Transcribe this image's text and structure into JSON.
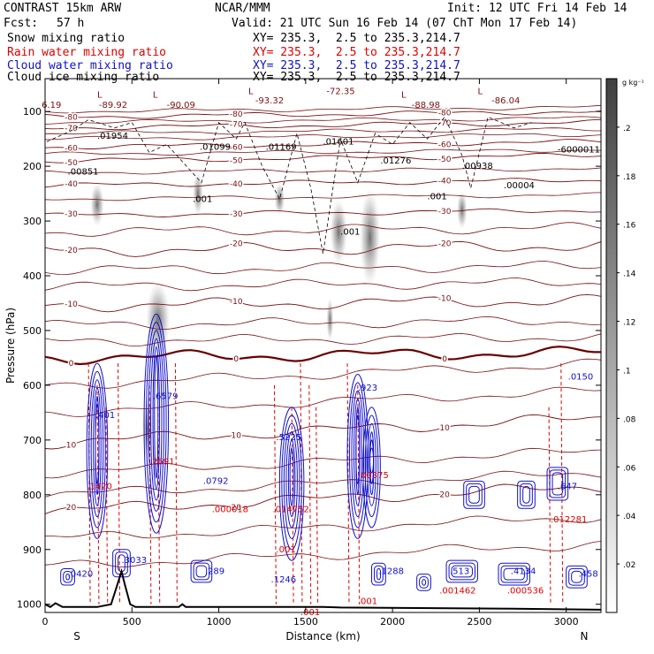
{
  "header": {
    "model": "CONTRAST 15km ARW",
    "org": "NCAR/MMM",
    "init": "Init: 12 UTC Fri 14 Feb 14",
    "fcst_label": "Fcst:",
    "fcst_value": "57 h",
    "valid": "Valid: 21 UTC Sun 16 Feb 14 (07 ChT Mon 17 Feb 14)",
    "fields": [
      {
        "name": "Snow mixing ratio",
        "xy": "XY= 235.3,  2.5 to 235.3,214.7",
        "color": "#000000"
      },
      {
        "name": "Rain water mixing ratio",
        "xy": "XY= 235.3,  2.5 to 235.3,214.7",
        "color": "#e00000"
      },
      {
        "name": "Cloud water mixing ratio",
        "xy": "XY= 235.3,  2.5 to 235.3,214.7",
        "color": "#1010cc"
      },
      {
        "name": "Cloud ice mixing ratio",
        "xy": "XY= 235.3,  2.5 to 235.3,214.7",
        "color": "#000000"
      }
    ]
  },
  "colors": {
    "temperature": "#7a1010",
    "freezing": "#6a0000",
    "rain": "#e00000",
    "cloud_water": "#1010cc",
    "terrain": "#000000"
  },
  "chart_data": {
    "type": "cross-section",
    "xlabel": "Distance (km)",
    "ylabel": "Pressure (hPa)",
    "x_ticks": [
      0,
      500,
      1000,
      1500,
      2000,
      2500,
      3000
    ],
    "xlim": [
      0,
      3200
    ],
    "y_ticks": [
      100,
      200,
      300,
      400,
      500,
      600,
      700,
      800,
      900,
      1000
    ],
    "ylim": [
      1015,
      40
    ],
    "end_labels": {
      "left": "S",
      "right": "N"
    },
    "colorbar": {
      "units": "g kg⁻¹",
      "ticks": [
        ".2",
        ".18",
        ".16",
        ".14",
        ".12",
        ".1",
        ".08",
        ".06",
        ".04",
        ".02"
      ],
      "tick_values": [
        0.2,
        0.18,
        0.16,
        0.14,
        0.12,
        0.1,
        0.08,
        0.06,
        0.04,
        0.02
      ],
      "range": [
        0,
        0.22
      ]
    },
    "isotherms": [
      {
        "label": "-80",
        "p": 110
      },
      {
        "label": "-70",
        "p": 130
      },
      {
        "label": "-60",
        "p": 165
      },
      {
        "label": "-50",
        "p": 190
      },
      {
        "label": "-40",
        "p": 235
      },
      {
        "label": "-30",
        "p": 290
      },
      {
        "label": "-20",
        "p": 355
      },
      {
        "label": "-10",
        "p": 455
      },
      {
        "label": "0",
        "p": 550
      },
      {
        "label": "10",
        "p": 705
      },
      {
        "label": "20",
        "p": 830
      }
    ],
    "tropopause_labels": [
      {
        "text": "L",
        "x": 300,
        "p": 75
      },
      {
        "text": "-89.92",
        "x": 310,
        "p": 93
      },
      {
        "text": "L",
        "x": 620,
        "p": 75
      },
      {
        "text": "-90.09",
        "x": 700,
        "p": 93
      },
      {
        "text": "L",
        "x": 1170,
        "p": 68
      },
      {
        "text": "-93.32",
        "x": 1210,
        "p": 85
      },
      {
        "text": "-72.35",
        "x": 1620,
        "p": 68
      },
      {
        "text": "L",
        "x": 2050,
        "p": 75
      },
      {
        "text": "-88.98",
        "x": 2110,
        "p": 93
      },
      {
        "text": "L",
        "x": 2490,
        "p": 68
      },
      {
        "text": "-86.04",
        "x": 2570,
        "p": 85
      },
      {
        "text": "6.19",
        "x": -20,
        "p": 93
      }
    ],
    "snow_max_labels": [
      {
        "text": ".01954",
        "x": 300,
        "p": 150
      },
      {
        "text": ".01099",
        "x": 890,
        "p": 170
      },
      {
        "text": ".01169",
        "x": 1270,
        "p": 170
      },
      {
        "text": ".01601",
        "x": 1600,
        "p": 160
      },
      {
        "text": ".01276",
        "x": 1930,
        "p": 195
      },
      {
        "text": ".00938",
        "x": 2400,
        "p": 205
      },
      {
        "text": ".00004",
        "x": 2640,
        "p": 240
      },
      {
        "text": "-6000011",
        "x": 2950,
        "p": 175
      },
      {
        "text": ".00851",
        "x": 130,
        "p": 215
      },
      {
        "text": ".001",
        "x": 850,
        "p": 265
      },
      {
        "text": ".001",
        "x": 2200,
        "p": 260
      },
      {
        "text": ".001",
        "x": 1700,
        "p": 325
      }
    ],
    "cloud_water_labels": [
      {
        "text": ".6579",
        "x": 620,
        "p": 625
      },
      {
        "text": ".5225",
        "x": 1330,
        "p": 700
      },
      {
        "text": ".0792",
        "x": 910,
        "p": 780
      },
      {
        "text": ".401",
        "x": 290,
        "p": 660
      },
      {
        "text": ".923",
        "x": 1800,
        "p": 610
      },
      {
        "text": ".0150",
        "x": 3010,
        "p": 590
      },
      {
        "text": ".0420",
        "x": 130,
        "p": 950
      },
      {
        "text": ".3033",
        "x": 440,
        "p": 925
      },
      {
        "text": ".289",
        "x": 920,
        "p": 945
      },
      {
        "text": ".1246",
        "x": 1300,
        "p": 960
      },
      {
        "text": ".1288",
        "x": 1920,
        "p": 945
      },
      {
        "text": ".513",
        "x": 2330,
        "p": 945
      },
      {
        "text": ".4134",
        "x": 2680,
        "p": 945
      },
      {
        "text": ".458",
        "x": 3070,
        "p": 950
      },
      {
        "text": ".647",
        "x": 2950,
        "p": 790
      }
    ],
    "rain_labels": [
      {
        "text": ".1420",
        "x": 240,
        "p": 790
      },
      {
        "text": ".2691",
        "x": 600,
        "p": 745
      },
      {
        "text": ".000018",
        "x": 960,
        "p": 832
      },
      {
        "text": ".014752",
        "x": 1310,
        "p": 832
      },
      {
        "text": ".00375",
        "x": 1800,
        "p": 770
      },
      {
        "text": ".012281",
        "x": 2910,
        "p": 850
      },
      {
        "text": ".001462",
        "x": 2270,
        "p": 980
      },
      {
        "text": ".000536",
        "x": 2660,
        "p": 980
      },
      {
        "text": ".001",
        "x": 1470,
        "p": 1020
      },
      {
        "text": ".001",
        "x": 1800,
        "p": 1000
      },
      {
        "text": ".001",
        "x": 1330,
        "p": 905
      }
    ]
  }
}
